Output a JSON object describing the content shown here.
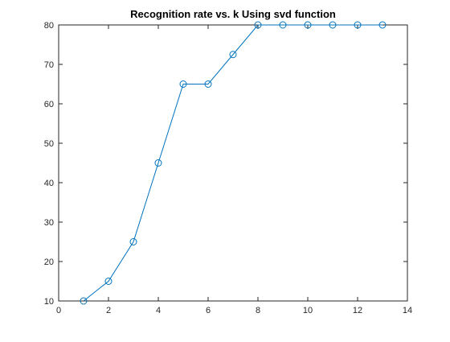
{
  "chart_data": {
    "type": "line",
    "title": "Recognition rate vs. k Using svd function",
    "xlabel": "",
    "ylabel": "",
    "xlim": [
      0,
      14
    ],
    "ylim": [
      10,
      80
    ],
    "xticks": [
      0,
      2,
      4,
      6,
      8,
      10,
      12,
      14
    ],
    "yticks": [
      10,
      20,
      30,
      40,
      50,
      60,
      70,
      80
    ],
    "grid": false,
    "marker": "circle",
    "series_color": "#0072BD",
    "series": [
      {
        "x": [
          1,
          2,
          3,
          4,
          5,
          6,
          7,
          8,
          9,
          10,
          11,
          12,
          13
        ],
        "values": [
          10,
          15,
          25,
          45,
          65,
          65,
          72.5,
          80,
          80,
          80,
          80,
          80,
          80
        ]
      }
    ]
  }
}
